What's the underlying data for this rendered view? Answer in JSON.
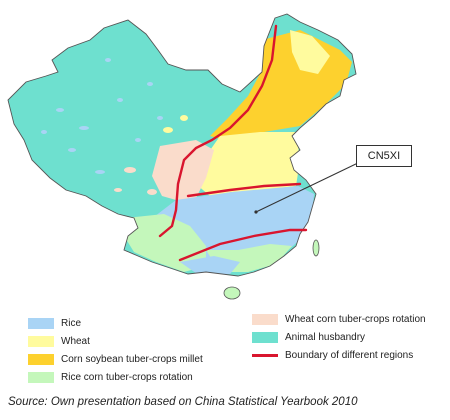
{
  "map": {
    "callout_label": "CN5XI",
    "colors": {
      "rice": "#a9d4f5",
      "wheat": "#fffb9e",
      "corn": "#fdd12e",
      "rice_corn": "#c4f7bb",
      "wheat_corn": "#fadccb",
      "animal": "#6ee0cf",
      "boundary": "#d9152e"
    }
  },
  "legend": {
    "items": [
      {
        "label": "Rice",
        "color": "#a9d4f5",
        "kind": "area"
      },
      {
        "label": "Wheat",
        "color": "#fffb9e",
        "kind": "area"
      },
      {
        "label": "Corn soybean tuber-crops millet",
        "color": "#fdd12e",
        "kind": "area"
      },
      {
        "label": "Rice corn tuber-crops rotation",
        "color": "#c4f7bb",
        "kind": "area"
      },
      {
        "label": "Wheat corn tuber-crops rotation",
        "color": "#fadccb",
        "kind": "area"
      },
      {
        "label": "Animal husbandry",
        "color": "#6ee0cf",
        "kind": "area"
      },
      {
        "label": "Boundary of different regions",
        "color": "#d9152e",
        "kind": "line"
      }
    ]
  },
  "source": "Source: Own presentation based on China Statistical Yearbook 2010"
}
